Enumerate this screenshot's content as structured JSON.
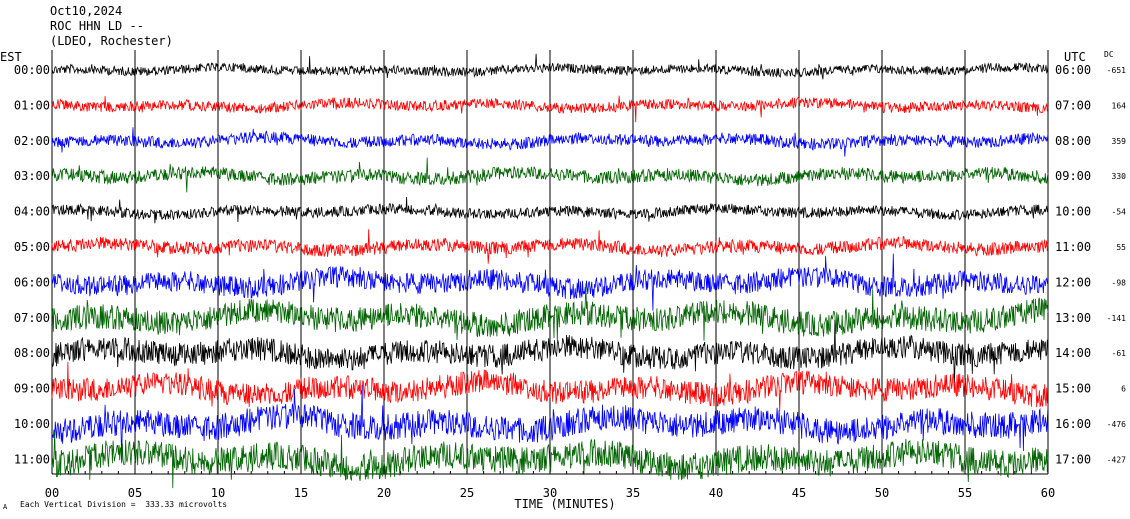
{
  "header": {
    "date": "Oct10,2024",
    "station": "ROC HHN LD --",
    "network": "(LDEO, Rochester)"
  },
  "left_zone": "EST",
  "right_zone": "UTC",
  "dc_title": "DC",
  "footer": "Each Vertical Division =  333.33 microvolts",
  "corner_mark": "A",
  "chart_data": {
    "type": "line",
    "title": "",
    "xlabel": "TIME (MINUTES)",
    "ylabel": "",
    "xlim": [
      0,
      60
    ],
    "x_ticks": [
      "00",
      "05",
      "10",
      "15",
      "20",
      "25",
      "30",
      "35",
      "40",
      "45",
      "50",
      "55",
      "60"
    ],
    "grid": true,
    "series": [
      {
        "est": "00:00",
        "utc": "06:00",
        "dc": "-651",
        "color": "#000000",
        "amplitude": 0.35
      },
      {
        "est": "01:00",
        "utc": "07:00",
        "dc": "164",
        "color": "#ff0000",
        "amplitude": 0.4
      },
      {
        "est": "02:00",
        "utc": "08:00",
        "dc": "359",
        "color": "#0000ff",
        "amplitude": 0.45
      },
      {
        "est": "03:00",
        "utc": "09:00",
        "dc": "330",
        "color": "#006400",
        "amplitude": 0.5
      },
      {
        "est": "04:00",
        "utc": "10:00",
        "dc": "-54",
        "color": "#000000",
        "amplitude": 0.4
      },
      {
        "est": "05:00",
        "utc": "11:00",
        "dc": "55",
        "color": "#ff0000",
        "amplitude": 0.5
      },
      {
        "est": "06:00",
        "utc": "12:00",
        "dc": "-98",
        "color": "#0000ff",
        "amplitude": 0.8
      },
      {
        "est": "07:00",
        "utc": "13:00",
        "dc": "-141",
        "color": "#006400",
        "amplitude": 0.95
      },
      {
        "est": "08:00",
        "utc": "14:00",
        "dc": "-61",
        "color": "#000000",
        "amplitude": 0.9
      },
      {
        "est": "09:00",
        "utc": "15:00",
        "dc": "6",
        "color": "#ff0000",
        "amplitude": 0.9
      },
      {
        "est": "10:00",
        "utc": "16:00",
        "dc": "-476",
        "color": "#0000ff",
        "amplitude": 1.0
      },
      {
        "est": "11:00",
        "utc": "17:00",
        "dc": "-427",
        "color": "#006400",
        "amplitude": 1.05
      }
    ]
  }
}
